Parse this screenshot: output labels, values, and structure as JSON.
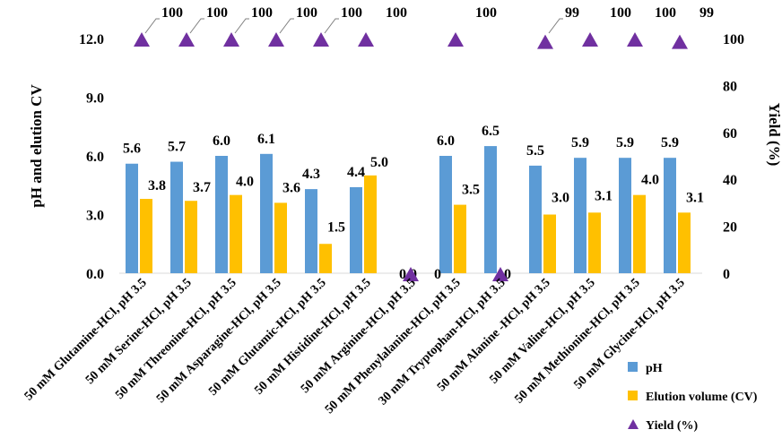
{
  "chart_data": {
    "type": "bar",
    "title": "",
    "categories": [
      "50 mM Glutamine-HCl, pH 3.5",
      "50 mM Serine-HCl, pH 3.5",
      "50 mM Threonine-HCl, pH 3.5",
      "50 mM Asparagine-HCl, pH 3.5",
      "50 mM Glutamic-HCl, pH 3.5",
      "50 mM Histidine-HCl, pH 3.5",
      "50 mM Arginine-HCl, pH 3.5",
      "50 mM Phenylalanine-HCl, pH 3.5",
      "30 mM Tryptophan-HCl, pH 3.5",
      "50 mM Alanine -HCl, pH 3.5",
      "50 mM Valine-HCl, pH 3.5",
      "50 mM Methionine-HCl, pH 3.5",
      "50 mM Glycine-HCl, pH 3.5"
    ],
    "series": [
      {
        "name": "pH",
        "axis": "left",
        "kind": "bar",
        "color": "#5b9bd5",
        "values": [
          5.6,
          5.7,
          6.0,
          6.1,
          4.3,
          4.4,
          null,
          6.0,
          6.5,
          5.5,
          5.9,
          5.9,
          5.9
        ],
        "labels": [
          "5.6",
          "5.7",
          "6.0",
          "6.1",
          "4.3",
          "4.4",
          "",
          "6.0",
          "6.5",
          "5.5",
          "5.9",
          "5.9",
          "5.9"
        ]
      },
      {
        "name": "Elution volume (CV)",
        "axis": "left",
        "kind": "bar",
        "color": "#ffc000",
        "values": [
          3.8,
          3.7,
          4.0,
          3.6,
          1.5,
          5.0,
          0.0,
          3.5,
          null,
          3.0,
          3.1,
          4.0,
          3.1
        ],
        "labels": [
          "3.8",
          "3.7",
          "4.0",
          "3.6",
          "1.5",
          "5.0",
          "0.0",
          "3.5",
          "",
          "3.0",
          "3.1",
          "4.0",
          "3.1"
        ]
      },
      {
        "name": "Yield (%)",
        "axis": "right",
        "kind": "marker",
        "marker": "triangle",
        "color": "#7030a0",
        "values": [
          100,
          100,
          100,
          100,
          100,
          100,
          0,
          100,
          0,
          99,
          100,
          100,
          99
        ],
        "labels": [
          "100",
          "100",
          "100",
          "100",
          "100",
          "100",
          "0",
          "100",
          "0",
          "99",
          "100",
          "100",
          "99"
        ]
      }
    ],
    "ylabel": "pH and elution CV",
    "y2label": "Yield (%)",
    "xlabel": "",
    "ylim": [
      0,
      12
    ],
    "y_ticks": [
      "0.0",
      "3.0",
      "6.0",
      "9.0",
      "12.0"
    ],
    "y2lim": [
      0,
      100
    ],
    "y2_ticks": [
      "0",
      "20",
      "40",
      "60",
      "80",
      "100"
    ],
    "legend_position": "bottom-right",
    "grid": false
  }
}
